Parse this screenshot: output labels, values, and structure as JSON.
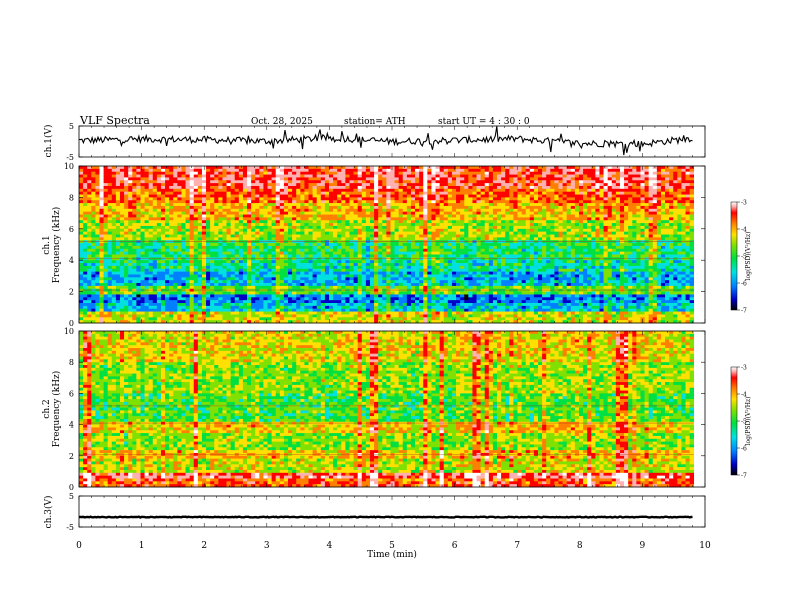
{
  "header": {
    "title": "VLF  Spectra",
    "date": "Oct. 28, 2025",
    "station": "station= ATH",
    "start_time": "start  UT  =   4  : 30 : 0"
  },
  "colors": {
    "trace": "#000000",
    "colormap": [
      "#000000",
      "#0000c8",
      "#0080ff",
      "#00e0e0",
      "#00e040",
      "#80e000",
      "#ffe000",
      "#ff8000",
      "#ff0000",
      "#ffb0b0",
      "#ffffff"
    ]
  },
  "chart_data": [
    {
      "type": "line",
      "panel": "ch1-waveform",
      "ylabel": "ch.1(V)",
      "ylim": [
        -5,
        5
      ],
      "yticks": [
        "5",
        "-5"
      ],
      "xlim": [
        0,
        10
      ],
      "series": [
        {
          "x": [
            0,
            1,
            2,
            3,
            4,
            5,
            6,
            7,
            8,
            9,
            9.8
          ],
          "values": [
            0.3,
            0.8,
            0.6,
            0.1,
            1.2,
            0.0,
            0.4,
            0.9,
            -0.6,
            -0.8,
            1.1
          ]
        }
      ]
    },
    {
      "type": "heatmap",
      "panel": "ch1-spectrogram",
      "ylabel": "ch.1",
      "ylabel2": "Frequency  (kHz)",
      "ylim": [
        0,
        10
      ],
      "yticks": [
        "0",
        "2",
        "4",
        "6",
        "8",
        "10"
      ],
      "xlim": [
        0,
        10
      ],
      "colorbar": {
        "label": "log(PSD)(V²/Hz)",
        "range": [
          -7,
          -3
        ],
        "ticks": [
          "-3",
          "-4",
          "-5",
          "-6",
          "-7"
        ]
      }
    },
    {
      "type": "heatmap",
      "panel": "ch2-spectrogram",
      "ylabel": "ch.2",
      "ylabel2": "Frequency  (kHz)",
      "ylim": [
        0,
        10
      ],
      "yticks": [
        "0",
        "2",
        "4",
        "6",
        "8",
        "10"
      ],
      "xlim": [
        0,
        10
      ],
      "colorbar": {
        "label": "log(PSD)(V²/Hz)",
        "range": [
          -7,
          -3
        ],
        "ticks": [
          "-3",
          "-4",
          "-5",
          "-6",
          "-7"
        ]
      }
    },
    {
      "type": "line",
      "panel": "ch3-waveform",
      "ylabel": "ch.3(V)",
      "ylim": [
        -5,
        5
      ],
      "yticks": [
        "5",
        "-5"
      ],
      "xlim": [
        0,
        10
      ],
      "series": [
        {
          "x": [
            0,
            9.8
          ],
          "values": [
            -1.8,
            -1.8
          ]
        }
      ]
    }
  ],
  "xaxis": {
    "label": "Time  (min)",
    "ticks": [
      "0",
      "1",
      "2",
      "3",
      "4",
      "5",
      "6",
      "7",
      "8",
      "9",
      "10"
    ]
  }
}
